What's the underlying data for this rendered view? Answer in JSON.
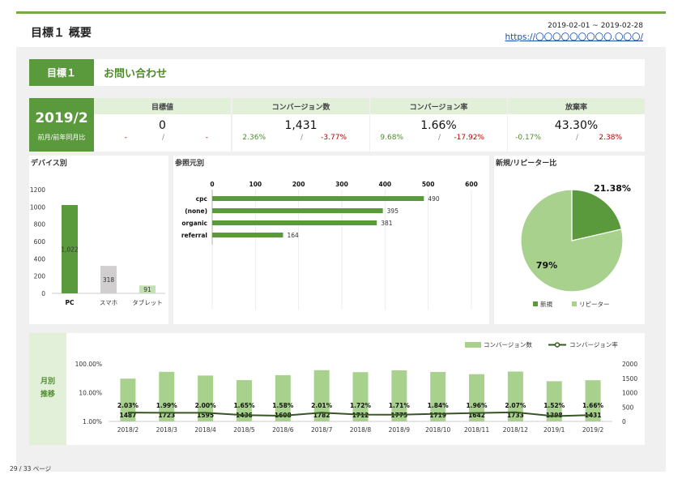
{
  "header": {
    "title": "目標１ 概要",
    "date_range": "2019-02-01 ~ 2019-02-28",
    "url": "https://〇〇〇〇〇〇〇〇〇.〇〇〇/"
  },
  "goal": {
    "label": "目標１",
    "name": "お問い合わせ"
  },
  "period": {
    "month": "2019/2",
    "compare_label": "前月/前年同月比"
  },
  "kpis": [
    {
      "label": "目標値",
      "value": "0",
      "mom": "-",
      "yoy": "-",
      "mom_color": "neg",
      "yoy_color": "neg"
    },
    {
      "label": "コンバージョン数",
      "value": "1,431",
      "mom": "2.36%",
      "yoy": "-3.77%",
      "mom_color": "pos",
      "yoy_color": "neg"
    },
    {
      "label": "コンバージョン率",
      "value": "1.66%",
      "mom": "9.68%",
      "yoy": "-17.92%",
      "mom_color": "pos",
      "yoy_color": "neg"
    },
    {
      "label": "放棄率",
      "value": "43.30%",
      "mom": "-0.17%",
      "yoy": "2.38%",
      "mom_color": "pos",
      "yoy_color": "neg"
    }
  ],
  "kpi_separator": "/",
  "panels": {
    "device": "デバイス別",
    "referral": "参照元別",
    "new_repeat": "新規/リピーター比",
    "trend": "月別推移",
    "trend_lines": [
      "月別",
      "推移"
    ]
  },
  "footer": "29 / 33 ページ",
  "colors": {
    "accent": "#70ad47",
    "accent_dark": "#5b9a3c",
    "light_green": "#a9d18e",
    "gray_bar": "#d0cece",
    "negative": "#c00000"
  },
  "chart_data": [
    {
      "type": "bar",
      "categories": [
        "PC",
        "スマホ",
        "タブレット"
      ],
      "values": [
        1022,
        318,
        91
      ],
      "data_labels": [
        "1,022",
        "318",
        "91"
      ],
      "ylim": [
        0,
        1200
      ],
      "yticks": [
        "0",
        "200",
        "400",
        "600",
        "800",
        "1000",
        "1200"
      ],
      "bar_colors": [
        "#5b9a3c",
        "#d0cece",
        "#c5e0b4"
      ]
    },
    {
      "type": "bar",
      "orientation": "horizontal",
      "categories": [
        "cpc",
        "(none)",
        "organic",
        "referral"
      ],
      "values": [
        490,
        395,
        381,
        164
      ],
      "xlim": [
        0,
        600
      ],
      "xticks": [
        "0",
        "100",
        "200",
        "300",
        "400",
        "500",
        "600"
      ]
    },
    {
      "type": "pie",
      "labels": [
        "新規",
        "リピーター"
      ],
      "values": [
        21.38,
        78.62
      ],
      "data_labels": [
        "21.38%",
        "79%"
      ],
      "colors": [
        "#5b9a3c",
        "#a9d18e"
      ]
    },
    {
      "type": "bar",
      "categories": [
        "2018/2",
        "2018/3",
        "2018/4",
        "2018/5",
        "2018/6",
        "2018/7",
        "2018/8",
        "2018/9",
        "2018/10",
        "2018/11",
        "2018/12",
        "2019/1",
        "2019/2"
      ],
      "series": [
        {
          "name": "コンバージョン数",
          "type": "bar",
          "axis": "right",
          "values": [
            1487,
            1723,
            1595,
            1436,
            1608,
            1782,
            1712,
            1775,
            1719,
            1642,
            1733,
            1398,
            1431
          ]
        },
        {
          "name": "コンバージョン率",
          "type": "line",
          "axis": "left",
          "values": [
            2.03,
            1.99,
            2.0,
            1.65,
            1.58,
            2.01,
            1.72,
            1.71,
            1.84,
            1.96,
            2.07,
            1.52,
            1.66
          ],
          "labels": [
            "2.03%",
            "1.99%",
            "2.00%",
            "1.65%",
            "1.58%",
            "2.01%",
            "1.72%",
            "1.71%",
            "1.84%",
            "1.96%",
            "2.07%",
            "1.52%",
            "1.66%"
          ]
        }
      ],
      "left_scale": "log",
      "left_ticks": [
        "100.00%",
        "10.00%",
        "1.00%"
      ],
      "right_ticks": [
        "2000",
        "1500",
        "1000",
        "500",
        "0"
      ],
      "legend": [
        "コンバージョン数",
        "コンバージョン率"
      ],
      "legend_position": "top-right"
    }
  ]
}
